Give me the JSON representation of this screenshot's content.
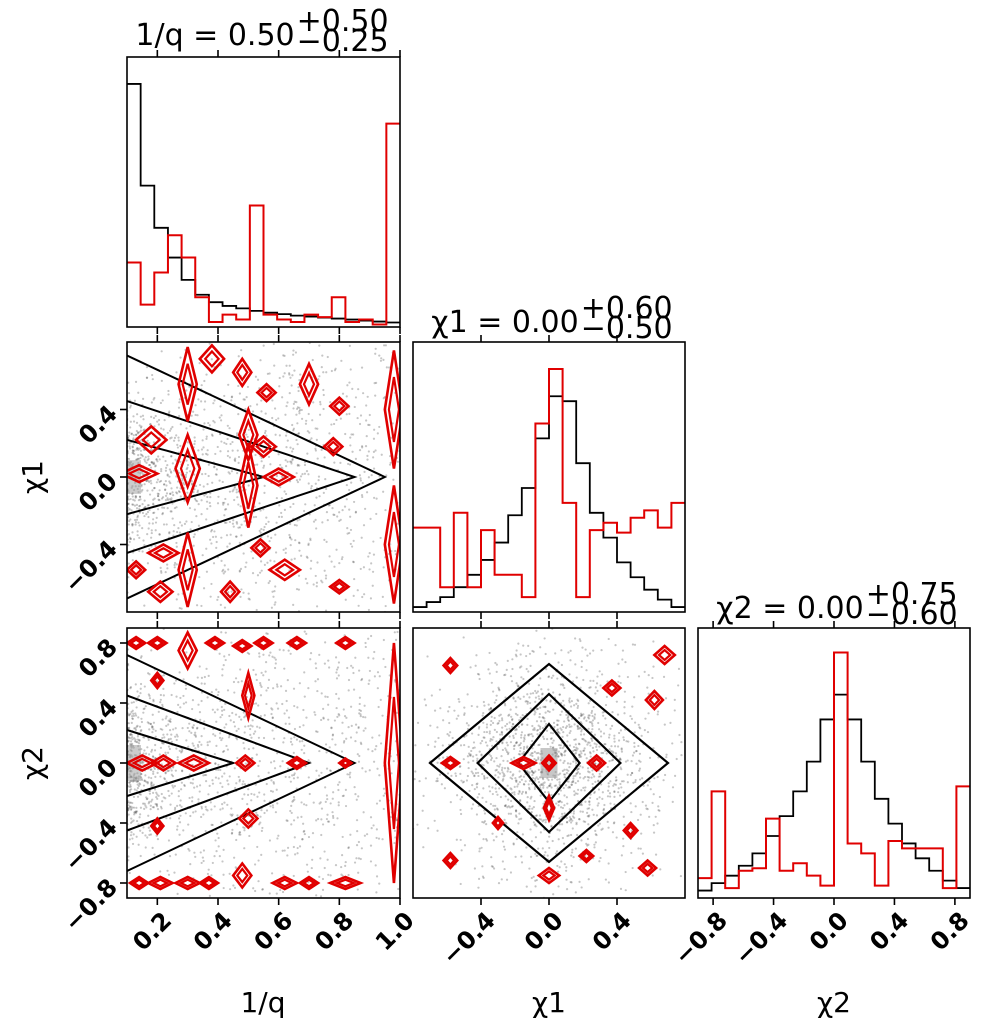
{
  "chart_data": {
    "type": "corner",
    "colors": {
      "prior": "#000000",
      "posterior": "#e00000",
      "scatter": "#222222"
    },
    "params": [
      {
        "key": "q",
        "axis_label": "1/q",
        "range": [
          0.1,
          1.0
        ],
        "title": {
          "lhs": "1/q",
          "median": "0.50",
          "plus": "+0.50",
          "minus": "−0.25"
        },
        "ticks": [
          "0.2",
          "0.4",
          "0.6",
          "0.8",
          "1.0"
        ],
        "tick_values": [
          0.2,
          0.4,
          0.6,
          0.8,
          1.0
        ]
      },
      {
        "key": "chi1",
        "axis_label": "χ1",
        "range": [
          -0.8,
          0.8
        ],
        "title": {
          "lhs": "χ1",
          "median": "0.00",
          "plus": "+0.60",
          "minus": "−0.50"
        },
        "ticks": [
          "−0.4",
          "0.0",
          "0.4"
        ],
        "tick_values": [
          -0.4,
          0.0,
          0.4
        ]
      },
      {
        "key": "chi2",
        "axis_label": "χ2",
        "range": [
          -0.9,
          0.9
        ],
        "title": {
          "lhs": "χ2",
          "median": "0.00",
          "plus": "+0.75",
          "minus": "−0.60"
        },
        "ticks": [
          "−0.8",
          "−0.4",
          "0.0",
          "0.4",
          "0.8"
        ],
        "tick_values": [
          -0.8,
          -0.4,
          0.0,
          0.4,
          0.8
        ]
      }
    ],
    "y_tick_labels": {
      "chi1": [
        "−0.4",
        "0.0",
        "0.4"
      ],
      "chi2": [
        "−0.8",
        "−0.4",
        "0.0",
        "0.4",
        "0.8"
      ]
    },
    "hist_q": {
      "bins": [
        0.1,
        0.145,
        0.19,
        0.235,
        0.28,
        0.325,
        0.37,
        0.415,
        0.46,
        0.505,
        0.55,
        0.595,
        0.64,
        0.685,
        0.73,
        0.775,
        0.82,
        0.865,
        0.91,
        0.955,
        1.0
      ],
      "black": [
        0.98,
        0.57,
        0.4,
        0.28,
        0.19,
        0.13,
        0.1,
        0.085,
        0.075,
        0.065,
        0.058,
        0.052,
        0.046,
        0.042,
        0.038,
        0.034,
        0.03,
        0.026,
        0.022,
        0.018
      ],
      "red": [
        0.26,
        0.09,
        0.22,
        0.37,
        0.28,
        0.12,
        0.02,
        0.05,
        0.03,
        0.49,
        0.05,
        0.03,
        0.02,
        0.05,
        0.04,
        0.12,
        0.02,
        0.03,
        0.01,
        0.82
      ]
    },
    "hist_chi1": {
      "bins": [
        -0.8,
        -0.72,
        -0.64,
        -0.56,
        -0.48,
        -0.4,
        -0.32,
        -0.24,
        -0.16,
        -0.08,
        0.0,
        0.08,
        0.16,
        0.24,
        0.32,
        0.4,
        0.48,
        0.56,
        0.64,
        0.72,
        0.8
      ],
      "black": [
        0.02,
        0.04,
        0.06,
        0.1,
        0.15,
        0.21,
        0.28,
        0.39,
        0.5,
        0.7,
        0.87,
        0.85,
        0.6,
        0.4,
        0.3,
        0.2,
        0.14,
        0.09,
        0.05,
        0.02
      ],
      "red": [
        0.34,
        0.34,
        0.1,
        0.4,
        0.1,
        0.33,
        0.15,
        0.15,
        0.06,
        0.76,
        0.98,
        0.44,
        0.06,
        0.33,
        0.36,
        0.32,
        0.38,
        0.41,
        0.34,
        0.44
      ]
    },
    "hist_chi2": {
      "bins": [
        -0.9,
        -0.81,
        -0.72,
        -0.63,
        -0.54,
        -0.45,
        -0.36,
        -0.27,
        -0.18,
        -0.09,
        0.0,
        0.09,
        0.18,
        0.27,
        0.36,
        0.45,
        0.54,
        0.63,
        0.72,
        0.81,
        0.9
      ],
      "black": [
        0.03,
        0.06,
        0.09,
        0.13,
        0.18,
        0.25,
        0.33,
        0.43,
        0.55,
        0.72,
        0.82,
        0.72,
        0.55,
        0.4,
        0.3,
        0.22,
        0.16,
        0.11,
        0.07,
        0.04
      ],
      "red": [
        0.08,
        0.43,
        0.04,
        0.11,
        0.12,
        0.32,
        0.11,
        0.14,
        0.09,
        0.05,
        0.99,
        0.22,
        0.18,
        0.05,
        0.23,
        0.2,
        0.2,
        0.2,
        0.04,
        0.45
      ]
    }
  }
}
